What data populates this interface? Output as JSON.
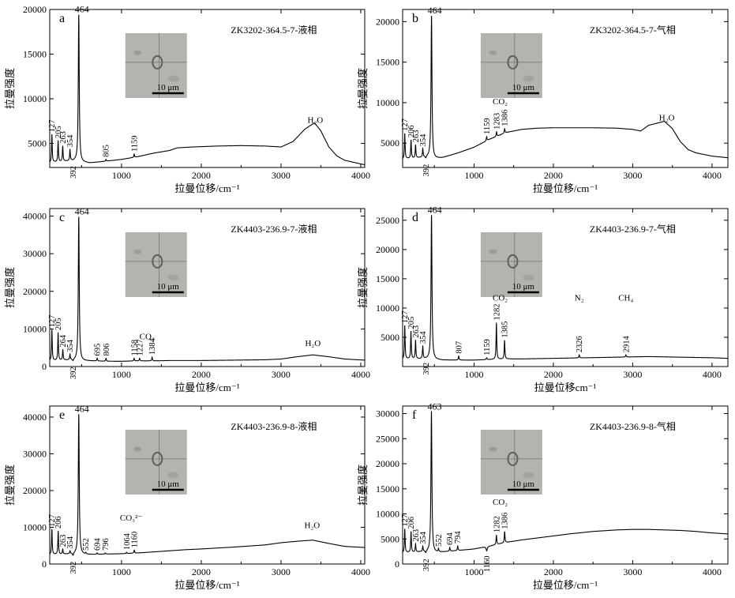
{
  "figure": {
    "background": "#ffffff",
    "line_color": "#000000",
    "inset_color": "#b4b4ae"
  },
  "chart_data": [
    {
      "type": "line",
      "panel_label": "a",
      "sample": "ZK3202-364.5-7-液相",
      "xlabel": "拉曼位移/cm⁻¹",
      "ylabel": "拉曼强度",
      "xlim": [
        100,
        4050
      ],
      "ylim": [
        2300,
        20000
      ],
      "xticks": [
        1000,
        2000,
        3000,
        4000
      ],
      "yticks": [
        5000,
        10000,
        15000,
        20000
      ],
      "scale_bar": "10 μm",
      "peaks": [
        {
          "x": 127,
          "y": 6000,
          "label": "127"
        },
        {
          "x": 205,
          "y": 5300,
          "label": "205"
        },
        {
          "x": 263,
          "y": 4700,
          "label": "263"
        },
        {
          "x": 354,
          "y": 4300,
          "label": "354"
        },
        {
          "x": 392,
          "y": 3000,
          "label": "392",
          "below": true
        },
        {
          "x": 464,
          "y": 19500,
          "label": "464"
        },
        {
          "x": 805,
          "y": 3200,
          "label": "805"
        },
        {
          "x": 1159,
          "y": 3800,
          "label": "1159"
        }
      ],
      "annotations": [
        {
          "x": 3430,
          "y": 7300,
          "label": "H₂O"
        }
      ],
      "series": [
        {
          "x": [
            100,
            150,
            200,
            300,
            420,
            500,
            600,
            800,
            1000,
            1200,
            1400,
            1600,
            1700,
            1900,
            2200,
            2500,
            2800,
            3000,
            3150,
            3300,
            3420,
            3500,
            3600,
            3700,
            3800,
            3900,
            4050
          ],
          "values": [
            2800,
            2900,
            2900,
            3000,
            3050,
            2900,
            2800,
            3000,
            3200,
            3500,
            3900,
            4200,
            4500,
            4600,
            4700,
            4750,
            4700,
            4600,
            5200,
            6600,
            7300,
            6400,
            4600,
            3600,
            3100,
            2900,
            2600
          ]
        }
      ]
    },
    {
      "type": "line",
      "panel_label": "b",
      "sample": "ZK3202-364.5-7-气相",
      "xlabel": "拉曼位移/cm⁻¹",
      "ylabel": "拉曼强度",
      "xlim": [
        100,
        4200
      ],
      "ylim": [
        2000,
        21500
      ],
      "xticks": [
        1000,
        2000,
        3000,
        4000
      ],
      "yticks": [
        5000,
        10000,
        15000,
        20000
      ],
      "scale_bar": "10 μm",
      "peaks": [
        {
          "x": 127,
          "y": 6200,
          "label": "127"
        },
        {
          "x": 206,
          "y": 5400,
          "label": "206"
        },
        {
          "x": 263,
          "y": 4800,
          "label": "263"
        },
        {
          "x": 354,
          "y": 4300,
          "label": "354"
        },
        {
          "x": 392,
          "y": 3000,
          "label": "392",
          "below": true
        },
        {
          "x": 464,
          "y": 20800,
          "label": "464"
        },
        {
          "x": 1159,
          "y": 5800,
          "label": "1159"
        },
        {
          "x": 1283,
          "y": 6400,
          "label": "1283"
        },
        {
          "x": 1386,
          "y": 6800,
          "label": "1386"
        }
      ],
      "annotations": [
        {
          "x": 1330,
          "y": 9800,
          "label": "CO₂"
        },
        {
          "x": 3430,
          "y": 7800,
          "label": "H₂O"
        }
      ],
      "series": [
        {
          "x": [
            100,
            150,
            200,
            300,
            420,
            500,
            600,
            800,
            1000,
            1200,
            1400,
            1600,
            1800,
            2000,
            2200,
            2500,
            2800,
            3000,
            3100,
            3200,
            3400,
            3500,
            3600,
            3700,
            3800,
            4000,
            4200
          ],
          "values": [
            3000,
            3100,
            3100,
            3200,
            3300,
            3100,
            3200,
            3800,
            4500,
            5500,
            6300,
            6700,
            6850,
            6900,
            6900,
            6900,
            6850,
            6700,
            6500,
            7200,
            7700,
            6800,
            5200,
            4200,
            3800,
            3400,
            3200
          ]
        }
      ]
    },
    {
      "type": "line",
      "panel_label": "c",
      "sample": "ZK4403-236.9-7-液相",
      "xlabel": "拉曼位移/cm⁻¹",
      "ylabel": "拉曼强度",
      "xlim": [
        100,
        4050
      ],
      "ylim": [
        0,
        42000
      ],
      "xticks": [
        1000,
        2000,
        3000,
        4000
      ],
      "yticks": [
        0,
        10000,
        20000,
        30000,
        40000
      ],
      "scale_bar": "10 μm",
      "peaks": [
        {
          "x": 127,
          "y": 9800,
          "label": "127"
        },
        {
          "x": 205,
          "y": 9000,
          "label": "205"
        },
        {
          "x": 264,
          "y": 4500,
          "label": "264"
        },
        {
          "x": 354,
          "y": 3200,
          "label": "354"
        },
        {
          "x": 392,
          "y": 1200,
          "label": "392",
          "below": true
        },
        {
          "x": 464,
          "y": 40000,
          "label": "464"
        },
        {
          "x": 695,
          "y": 2200,
          "label": "695"
        },
        {
          "x": 806,
          "y": 2200,
          "label": "806"
        },
        {
          "x": 1158,
          "y": 2200,
          "label": "1158"
        },
        {
          "x": 1227,
          "y": 2200,
          "label": "1227"
        },
        {
          "x": 1384,
          "y": 2500,
          "label": "1384"
        }
      ],
      "annotations": [
        {
          "x": 1320,
          "y": 7200,
          "label": "CO₂"
        },
        {
          "x": 3400,
          "y": 5500,
          "label": "H₂O"
        }
      ],
      "series": [
        {
          "x": [
            100,
            150,
            200,
            300,
            420,
            500,
            600,
            800,
            1000,
            1200,
            1400,
            1600,
            2000,
            2400,
            2800,
            3000,
            3200,
            3400,
            3600,
            3800,
            4050
          ],
          "values": [
            1500,
            1600,
            1600,
            1700,
            1700,
            1500,
            1500,
            1400,
            1400,
            1500,
            1500,
            1600,
            1600,
            1700,
            1800,
            2000,
            2600,
            3100,
            2600,
            2000,
            1700
          ]
        }
      ]
    },
    {
      "type": "line",
      "panel_label": "d",
      "sample": "ZK4403-236.9-7-气相",
      "xlabel": "拉曼位移cm⁻¹",
      "ylabel": "拉曼强度",
      "xlim": [
        100,
        4200
      ],
      "ylim": [
        0,
        27000
      ],
      "xticks": [
        1000,
        2000,
        3000,
        4000
      ],
      "yticks": [
        5000,
        10000,
        15000,
        20000,
        25000
      ],
      "scale_bar": "10 μm",
      "peaks": [
        {
          "x": 127,
          "y": 7000,
          "label": "127"
        },
        {
          "x": 205,
          "y": 6000,
          "label": "205"
        },
        {
          "x": 263,
          "y": 4500,
          "label": "263"
        },
        {
          "x": 354,
          "y": 3500,
          "label": "354"
        },
        {
          "x": 392,
          "y": 1500,
          "label": "392",
          "below": true
        },
        {
          "x": 464,
          "y": 26000,
          "label": "464"
        },
        {
          "x": 807,
          "y": 1800,
          "label": "807"
        },
        {
          "x": 1159,
          "y": 1500,
          "label": "1159"
        },
        {
          "x": 1282,
          "y": 7500,
          "label": "1282"
        },
        {
          "x": 1385,
          "y": 4500,
          "label": "1385"
        },
        {
          "x": 2326,
          "y": 2000,
          "label": "2326"
        },
        {
          "x": 2914,
          "y": 2000,
          "label": "2914"
        }
      ],
      "annotations": [
        {
          "x": 1330,
          "y": 11300,
          "label": "CO₂"
        },
        {
          "x": 2326,
          "y": 11300,
          "label": "N₂"
        },
        {
          "x": 2914,
          "y": 11300,
          "label": "CH₄"
        }
      ],
      "series": [
        {
          "x": [
            100,
            150,
            200,
            300,
            420,
            500,
            600,
            800,
            1000,
            1200,
            1400,
            1600,
            2000,
            2400,
            2800,
            3200,
            3600,
            4000,
            4200
          ],
          "values": [
            1200,
            1300,
            1300,
            1300,
            1300,
            1200,
            1100,
            1100,
            1100,
            1200,
            1300,
            1300,
            1400,
            1500,
            1600,
            1700,
            1600,
            1500,
            1400
          ]
        }
      ]
    },
    {
      "type": "line",
      "panel_label": "e",
      "sample": "ZK4403-236.9-8-液相",
      "xlabel": "拉曼位移/cm⁻¹",
      "ylabel": "拉曼强度",
      "xlim": [
        100,
        4050
      ],
      "ylim": [
        0,
        43000
      ],
      "xticks": [
        1000,
        2000,
        3000,
        4000
      ],
      "yticks": [
        0,
        10000,
        20000,
        30000,
        40000
      ],
      "scale_bar": "10 μm",
      "peaks": [
        {
          "x": 127,
          "y": 9500,
          "label": "127"
        },
        {
          "x": 206,
          "y": 9000,
          "label": "206"
        },
        {
          "x": 263,
          "y": 4000,
          "label": "263"
        },
        {
          "x": 354,
          "y": 3500,
          "label": "354"
        },
        {
          "x": 392,
          "y": 2000,
          "label": "392",
          "below": true
        },
        {
          "x": 464,
          "y": 41000,
          "label": "464"
        },
        {
          "x": 552,
          "y": 3000,
          "label": "552"
        },
        {
          "x": 694,
          "y": 3000,
          "label": "694"
        },
        {
          "x": 796,
          "y": 3000,
          "label": "796"
        },
        {
          "x": 1064,
          "y": 3200,
          "label": "1064"
        },
        {
          "x": 1160,
          "y": 3800,
          "label": "1160"
        }
      ],
      "annotations": [
        {
          "x": 1120,
          "y": 11800,
          "label": "CO₃²⁻"
        },
        {
          "x": 3390,
          "y": 9800,
          "label": "H₂O"
        }
      ],
      "series": [
        {
          "x": [
            100,
            150,
            200,
            300,
            420,
            500,
            600,
            800,
            1000,
            1200,
            1400,
            1600,
            1800,
            2000,
            2400,
            2800,
            3000,
            3200,
            3400,
            3600,
            3800,
            4050
          ],
          "values": [
            2500,
            2600,
            2600,
            2700,
            2800,
            2600,
            2600,
            2700,
            2800,
            3000,
            3300,
            3600,
            3900,
            4100,
            4600,
            5200,
            5800,
            6200,
            6500,
            5600,
            4800,
            4500
          ]
        }
      ]
    },
    {
      "type": "line",
      "panel_label": "f",
      "sample": "ZK4403-236.9-8-气相",
      "xlabel": "拉曼位移/cm⁻¹",
      "ylabel": "拉曼强度",
      "xlim": [
        100,
        4200
      ],
      "ylim": [
        0,
        31500
      ],
      "xticks": [
        1000,
        2000,
        3000,
        4000
      ],
      "yticks": [
        0,
        5000,
        10000,
        15000,
        20000,
        25000,
        30000
      ],
      "scale_bar": "10 μm",
      "peaks": [
        {
          "x": 127,
          "y": 7000,
          "label": "127"
        },
        {
          "x": 206,
          "y": 6500,
          "label": "206"
        },
        {
          "x": 263,
          "y": 4000,
          "label": "263"
        },
        {
          "x": 354,
          "y": 3500,
          "label": "354"
        },
        {
          "x": 392,
          "y": 2000,
          "label": "392",
          "below": true
        },
        {
          "x": 463,
          "y": 30500,
          "label": "463"
        },
        {
          "x": 552,
          "y": 3000,
          "label": "552"
        },
        {
          "x": 694,
          "y": 3300,
          "label": "694"
        },
        {
          "x": 794,
          "y": 3600,
          "label": "794"
        },
        {
          "x": 1160,
          "y": 2600,
          "label": "1160",
          "below": true
        },
        {
          "x": 1282,
          "y": 5800,
          "label": "1282"
        },
        {
          "x": 1386,
          "y": 6500,
          "label": "1386"
        }
      ],
      "annotations": [
        {
          "x": 1330,
          "y": 11800,
          "label": "CO₂"
        }
      ],
      "series": [
        {
          "x": [
            100,
            150,
            200,
            300,
            420,
            500,
            600,
            800,
            1000,
            1200,
            1400,
            1600,
            1800,
            2000,
            2200,
            2500,
            2800,
            3000,
            3200,
            3400,
            3600,
            3800,
            4000,
            4200
          ],
          "values": [
            2200,
            2300,
            2300,
            2400,
            2500,
            2300,
            2400,
            2700,
            3000,
            3600,
            4300,
            4800,
            5200,
            5600,
            6000,
            6500,
            6800,
            6900,
            6900,
            6800,
            6700,
            6500,
            6200,
            6000
          ]
        }
      ]
    }
  ]
}
